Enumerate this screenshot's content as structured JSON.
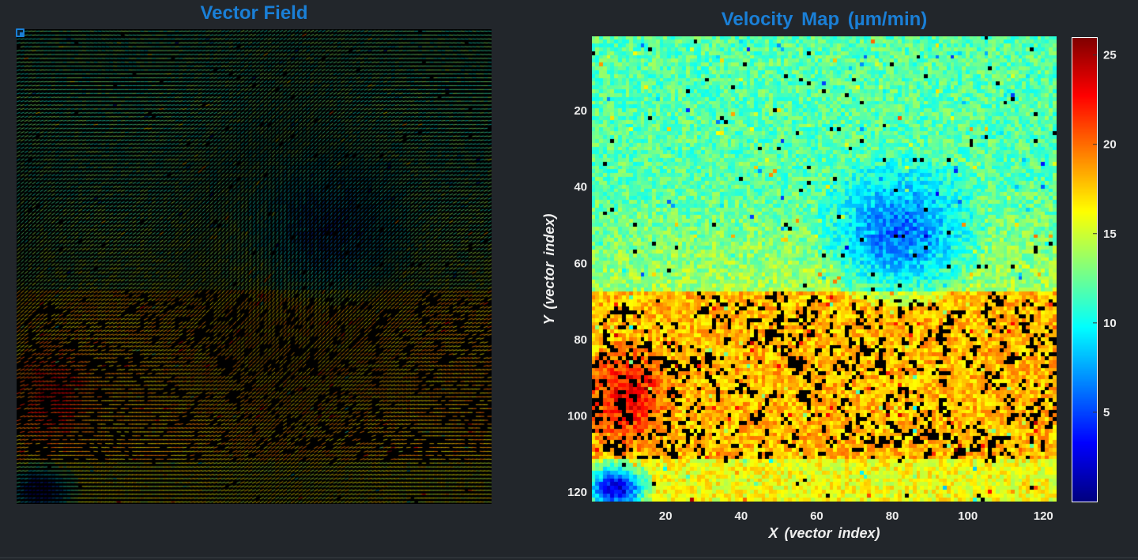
{
  "panels": {
    "vector_field": {
      "title": "Vector Field"
    },
    "velocity_map": {
      "title": "Velocity Map (µm/min)"
    }
  },
  "colors": {
    "background": "#22262b",
    "title": "#1a7fd6",
    "text": "#eeeeee",
    "colormap": "jet"
  },
  "chart_data": [
    {
      "type": "quiver",
      "title": "Vector Field",
      "grid": false,
      "background": "#000000",
      "description_values": {
        "x_range": [
          1,
          123
        ],
        "y_range": [
          1,
          122
        ],
        "note": "arrow field colored by speed on the same jet scale"
      }
    },
    {
      "type": "heatmap",
      "title": "Velocity Map (µm/min)",
      "xlabel": "X (vector index)",
      "ylabel": "Y (vector index)",
      "xlim": [
        1,
        123
      ],
      "ylim": [
        1,
        122
      ],
      "y_reversed": true,
      "x_ticks": [
        20,
        40,
        60,
        80,
        100,
        120
      ],
      "y_ticks": [
        20,
        40,
        60,
        80,
        100,
        120
      ],
      "colormap": "jet",
      "colorbar": {
        "range": [
          0,
          26
        ],
        "ticks": [
          5,
          10,
          15,
          20,
          25
        ],
        "position": "right"
      },
      "missing_value_color": "#000000",
      "regions": [
        {
          "name": "upper band",
          "x": [
            1,
            123
          ],
          "y": [
            1,
            40
          ],
          "value": 12
        },
        {
          "name": "slow zone",
          "center": [
            82,
            52
          ],
          "radius": [
            18,
            16
          ],
          "value": 6
        },
        {
          "name": "middle band",
          "x": [
            1,
            123
          ],
          "y": [
            40,
            68
          ],
          "value": 14
        },
        {
          "name": "fast lower band",
          "x": [
            1,
            123
          ],
          "y": [
            68,
            112
          ],
          "value": 18
        },
        {
          "name": "fast patch",
          "center": [
            10,
            95
          ],
          "radius": [
            10,
            12
          ],
          "value": 23
        },
        {
          "name": "slow corner",
          "center": [
            7,
            119
          ],
          "radius": [
            8,
            6
          ],
          "value": 2
        }
      ]
    }
  ]
}
